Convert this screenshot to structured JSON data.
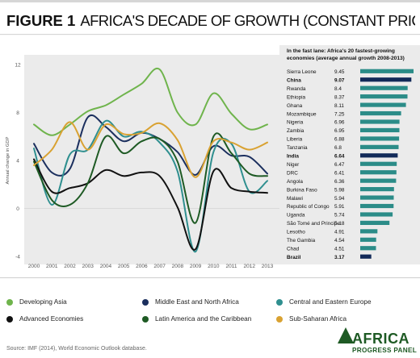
{
  "figure_label": "FIGURE 1",
  "figure_title": "AFRICA'S DECADE OF GROWTH (CONSTANT PRICES, SELECTED REGIONS)",
  "source": "Source: IMF (2014), World Economic Outlook database.",
  "logo": {
    "line1": "AFRICA",
    "line2": "PROGRESS PANEL"
  },
  "colors": {
    "developing_asia": "#6fb44c",
    "middle_east_north_africa": "#1b2f5e",
    "central_eastern_europe": "#2f8f8f",
    "advanced_economies": "#111111",
    "latin_america_caribbean": "#1e5a24",
    "sub_saharan_africa": "#d9a232",
    "bar_teal": "#2b8c88",
    "bar_navy": "#122a59"
  },
  "legend": [
    {
      "label": "Developing Asia",
      "color": "#6fb44c"
    },
    {
      "label": "Middle East and North Africa",
      "color": "#1b2f5e"
    },
    {
      "label": "Central and Eastern Europe",
      "color": "#2f8f8f"
    },
    {
      "label": "Advanced Economies",
      "color": "#111111"
    },
    {
      "label": "Latin America and the Caribbean",
      "color": "#1e5a24"
    },
    {
      "label": "Sub-Saharan Africa",
      "color": "#d9a232"
    }
  ],
  "chart_data": [
    {
      "type": "line",
      "title": "",
      "xlabel": "",
      "ylabel": "Annual change in GDP",
      "x": [
        "2000",
        "2001",
        "2002",
        "2003",
        "2004",
        "2005",
        "2006",
        "2007",
        "2008",
        "2009",
        "2010",
        "2011",
        "2012",
        "2013"
      ],
      "ylim": [
        -4,
        12
      ],
      "yticks": [
        "12",
        "8",
        "4",
        "0",
        "-4"
      ],
      "grid": false,
      "series": [
        {
          "name": "Developing Asia",
          "color": "#6fb44c",
          "values": [
            7.0,
            6.1,
            7.0,
            8.1,
            8.6,
            9.5,
            10.4,
            11.6,
            8.0,
            7.0,
            9.6,
            7.9,
            6.6,
            7.0
          ]
        },
        {
          "name": "Middle East and North Africa",
          "color": "#1b2f5e",
          "values": [
            5.4,
            3.0,
            3.3,
            7.6,
            6.8,
            5.6,
            6.3,
            5.8,
            4.7,
            2.8,
            5.2,
            4.4,
            4.3,
            2.9
          ]
        },
        {
          "name": "Central and Eastern Europe",
          "color": "#2f8f8f",
          "values": [
            5.0,
            0.3,
            4.5,
            4.9,
            7.3,
            6.0,
            6.4,
            5.5,
            3.1,
            -3.6,
            4.7,
            5.4,
            1.4,
            2.3
          ]
        },
        {
          "name": "Advanced Economies",
          "color": "#111111",
          "values": [
            4.1,
            1.4,
            1.7,
            2.1,
            3.2,
            2.7,
            3.0,
            2.7,
            0.1,
            -3.4,
            3.1,
            1.7,
            1.4,
            1.3
          ]
        },
        {
          "name": "Latin America and the Caribbean",
          "color": "#1e5a24",
          "values": [
            3.9,
            0.7,
            0.3,
            2.1,
            6.0,
            4.6,
            5.6,
            5.8,
            3.9,
            -1.2,
            6.0,
            4.6,
            2.9,
            2.7
          ]
        },
        {
          "name": "Sub-Saharan Africa",
          "color": "#d9a232",
          "values": [
            3.6,
            4.9,
            7.2,
            4.9,
            7.0,
            6.2,
            6.3,
            7.1,
            5.7,
            2.6,
            5.6,
            5.5,
            4.9,
            5.5
          ]
        }
      ]
    },
    {
      "type": "bar",
      "title": "In the fast lane: Africa's 20 fastest-growing economies (average annual growth 2008-2013)",
      "categories": [
        "Sierra Leone",
        "China",
        "Rwanda",
        "Ethiopia",
        "Ghana",
        "Mozambique",
        "Nigeria",
        "Zambia",
        "Liberia",
        "Tanzania",
        "India",
        "Niger",
        "DRC",
        "Angola",
        "Burkina Faso",
        "Malawi",
        "Republic of Congo",
        "Uganda",
        "São Tomé and Principe",
        "Lesotho",
        "The Gambia",
        "Chad",
        "Brazil"
      ],
      "values": [
        9.45,
        9.07,
        8.4,
        8.37,
        8.11,
        7.25,
        6.96,
        6.95,
        6.88,
        6.8,
        6.64,
        6.47,
        6.41,
        6.36,
        5.98,
        5.94,
        5.91,
        5.74,
        5.18,
        4.91,
        4.54,
        4.51,
        3.17
      ],
      "value_labels": [
        "9.45",
        "9.07",
        "8.4",
        "8.37",
        "8.11",
        "7.25",
        "6.96",
        "6.95",
        "6.88",
        "6.8",
        "6.64",
        "6.47",
        "6.41",
        "6.36",
        "5.98",
        "5.94",
        "5.91",
        "5.74",
        "5.18",
        "4.91",
        "4.54",
        "4.51",
        "3.17"
      ],
      "highlighted": [
        "China",
        "India",
        "Brazil"
      ]
    }
  ]
}
